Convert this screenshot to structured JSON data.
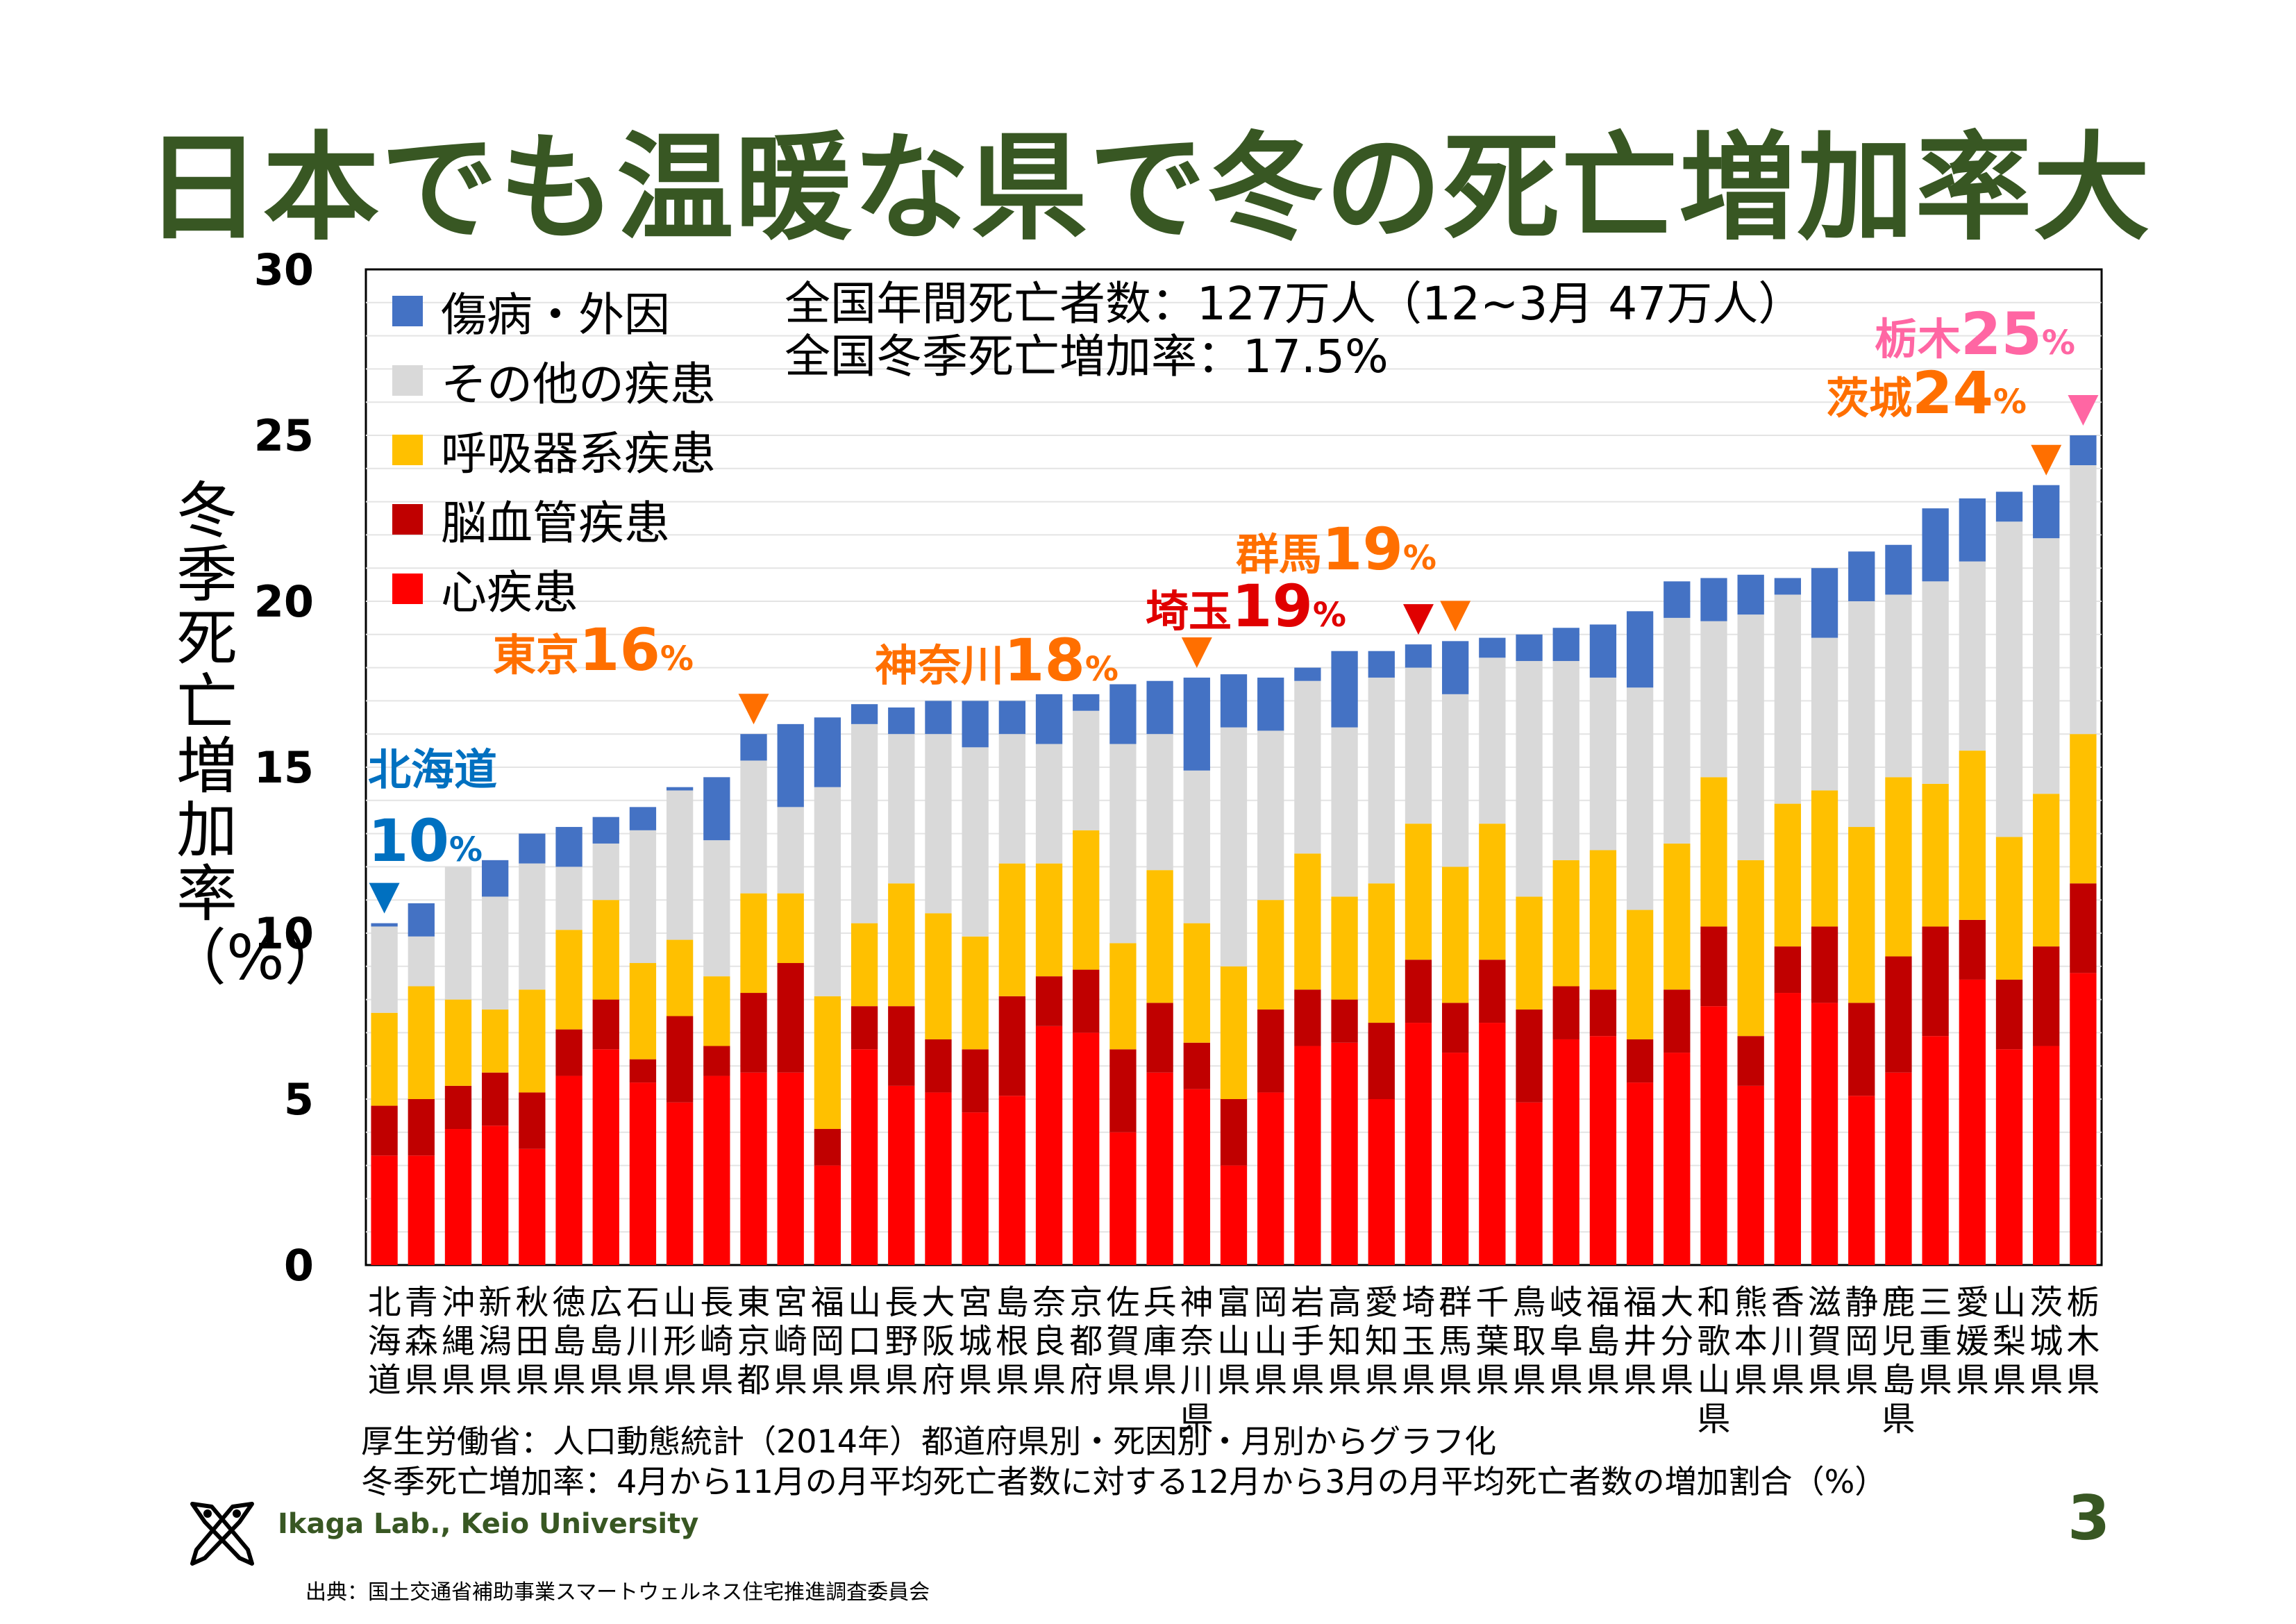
{
  "slide": {
    "title": "日本でも温暖な県で冬の死亡増加率大",
    "summary_line1": "全国年間死亡者数：127万人（12~3月 47万人）",
    "summary_line2": "全国冬季死亡増加率：17.5%",
    "note_line1": "厚生労働省：人口動態統計（2014年）都道府県別・死因別・月別からグラフ化",
    "note_line2": "冬季死亡増加率：4月から11月の月平均死亡者数に対する12月から3月の月平均死亡者数の増加割合（%）",
    "lab_name": "Ikaga Lab., Keio University",
    "lab_logo_icon": "crossed-fish-logo-icon",
    "page_number": "3",
    "source": "出典：国土交通省補助事業スマートウェルネス住宅推進調査委員会"
  },
  "chart_data": {
    "type": "bar",
    "stacked": true,
    "ylabel": "冬季死亡増加率（%）",
    "ylim": [
      0,
      30
    ],
    "yticks": [
      "0",
      "5",
      "10",
      "15",
      "20",
      "25",
      "30"
    ],
    "grid": true,
    "legend_position": "top-left",
    "categories": [
      "北海道",
      "青森県",
      "沖縄県",
      "新潟県",
      "秋田県",
      "徳島県",
      "広島県",
      "石川県",
      "山形県",
      "長崎県",
      "東京都",
      "宮崎県",
      "福岡県",
      "山口県",
      "長野県",
      "大阪府",
      "宮城県",
      "島根県",
      "奈良県",
      "京都府",
      "佐賀県",
      "兵庫県",
      "神奈川県",
      "富山県",
      "岡山県",
      "岩手県",
      "高知県",
      "愛知県",
      "埼玉県",
      "群馬県",
      "千葉県",
      "鳥取県",
      "岐阜県",
      "福島県",
      "福井県",
      "大分県",
      "和歌山県",
      "熊本県",
      "香川県",
      "滋賀県",
      "静岡県",
      "鹿児島県",
      "三重県",
      "愛媛県",
      "山梨県",
      "茨城県",
      "栃木県"
    ],
    "series": [
      {
        "name": "心疾患",
        "color": "#ff0000",
        "values": [
          3.3,
          3.3,
          4.1,
          4.2,
          3.5,
          5.7,
          6.5,
          5.5,
          4.9,
          5.7,
          5.8,
          5.8,
          3.0,
          6.5,
          5.4,
          5.2,
          4.6,
          5.1,
          7.2,
          7.0,
          4.0,
          5.8,
          5.3,
          3.0,
          5.2,
          6.6,
          6.7,
          5.0,
          7.3,
          6.4,
          7.3,
          4.9,
          6.8,
          6.9,
          5.5,
          6.4,
          7.8,
          5.4,
          8.2,
          7.9,
          5.1,
          5.8,
          6.9,
          8.6,
          6.5,
          6.6,
          8.8
        ]
      },
      {
        "name": "脳血管疾患",
        "color": "#c00000",
        "values": [
          1.5,
          1.7,
          1.3,
          1.6,
          1.7,
          1.4,
          1.5,
          0.7,
          2.6,
          0.9,
          2.4,
          3.3,
          1.1,
          1.3,
          2.4,
          1.6,
          1.9,
          3.0,
          1.5,
          1.9,
          2.5,
          2.1,
          1.4,
          2.0,
          2.5,
          1.7,
          1.3,
          2.3,
          1.9,
          1.5,
          1.9,
          2.8,
          1.6,
          1.4,
          1.3,
          1.9,
          2.4,
          1.5,
          1.4,
          2.3,
          2.8,
          3.5,
          3.3,
          1.8,
          2.1,
          3.0,
          2.7
        ]
      },
      {
        "name": "呼吸器系疾患",
        "color": "#ffc000",
        "values": [
          2.8,
          3.4,
          2.6,
          1.9,
          3.1,
          3.0,
          3.0,
          2.9,
          2.3,
          2.1,
          3.0,
          2.1,
          4.0,
          2.5,
          3.7,
          3.8,
          3.4,
          4.0,
          3.4,
          4.2,
          3.2,
          4.0,
          3.6,
          4.0,
          3.3,
          4.1,
          3.1,
          4.2,
          4.1,
          4.1,
          4.1,
          3.4,
          3.8,
          4.2,
          3.9,
          4.4,
          4.5,
          5.3,
          4.3,
          4.1,
          5.3,
          5.4,
          4.3,
          5.1,
          4.3,
          4.6,
          4.5
        ]
      },
      {
        "name": "その他の疾患",
        "color": "#d9d9d9",
        "values": [
          2.6,
          1.5,
          4.0,
          3.4,
          3.8,
          1.9,
          1.7,
          4.0,
          4.5,
          4.1,
          4.0,
          2.6,
          6.3,
          6.0,
          4.5,
          5.4,
          5.7,
          3.9,
          3.6,
          3.6,
          6.0,
          4.1,
          4.6,
          7.2,
          5.1,
          5.2,
          5.1,
          6.2,
          4.7,
          5.2,
          5.0,
          7.1,
          6.0,
          5.2,
          6.7,
          6.8,
          4.7,
          7.4,
          6.3,
          4.6,
          6.8,
          5.5,
          6.1,
          5.7,
          9.5,
          7.7,
          8.1
        ]
      },
      {
        "name": "傷病・外因",
        "color": "#4472c4",
        "values": [
          0.1,
          1.0,
          0.0,
          1.1,
          0.9,
          1.2,
          0.8,
          0.7,
          0.1,
          1.9,
          0.8,
          2.5,
          2.1,
          0.6,
          0.8,
          1.0,
          1.4,
          1.0,
          1.5,
          0.5,
          1.8,
          1.6,
          2.8,
          1.6,
          1.6,
          0.4,
          2.3,
          0.8,
          0.7,
          1.6,
          0.6,
          0.8,
          1.0,
          1.6,
          2.3,
          1.1,
          1.3,
          1.2,
          0.5,
          2.1,
          1.5,
          1.5,
          2.2,
          1.9,
          0.9,
          1.6,
          0.9
        ]
      }
    ],
    "annotations": [
      {
        "index": 0,
        "name": "北海道",
        "value": "10",
        "unit": "%",
        "color": "#0070c0",
        "marker": "triangle-down"
      },
      {
        "index": 10,
        "name": "東京",
        "value": "16",
        "unit": "%",
        "color": "#ff6f00",
        "marker": "triangle-down"
      },
      {
        "index": 22,
        "name": "神奈川",
        "value": "18",
        "unit": "%",
        "color": "#ff6f00",
        "marker": "triangle-down"
      },
      {
        "index": 28,
        "name": "埼玉",
        "value": "19",
        "unit": "%",
        "color": "#e00000",
        "marker": "triangle-down"
      },
      {
        "index": 29,
        "name": "群馬",
        "value": "19",
        "unit": "%",
        "color": "#ff6f00",
        "marker": "triangle-down"
      },
      {
        "index": 45,
        "name": "茨城",
        "value": "24",
        "unit": "%",
        "color": "#ff6f00",
        "marker": "triangle-down"
      },
      {
        "index": 46,
        "name": "栃木",
        "value": "25",
        "unit": "%",
        "color": "#ff66a3",
        "marker": "triangle-down"
      }
    ]
  }
}
